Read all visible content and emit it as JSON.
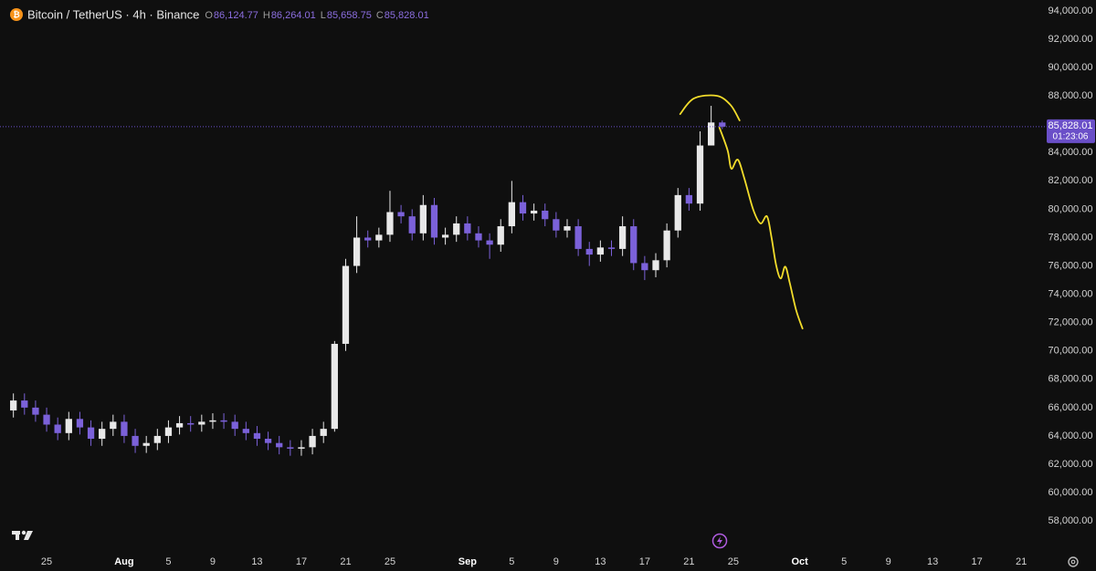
{
  "chart_data": {
    "type": "candlestick",
    "title": "Bitcoin / TetherUS · 4h · Binance",
    "header": [
      {
        "key": "O",
        "value": "86,124.77"
      },
      {
        "key": "H",
        "value": "86,264.01"
      },
      {
        "key": "L",
        "value": "85,658.75"
      },
      {
        "key": "C",
        "value": "85,828.01"
      }
    ],
    "last_price_label": "85,828.01",
    "countdown": "01:23:06",
    "up_color": "#e8e8e8",
    "down_color": "#7b61d9",
    "grid": false,
    "xlim": [
      20.79,
      114.8
    ],
    "ylim": [
      56140,
      94770
    ],
    "xticks": [
      {
        "value": 25,
        "label": "25"
      },
      {
        "value": 32,
        "label": "Aug"
      },
      {
        "value": 36,
        "label": "5"
      },
      {
        "value": 40,
        "label": "9"
      },
      {
        "value": 44,
        "label": "13"
      },
      {
        "value": 48,
        "label": "17"
      },
      {
        "value": 52,
        "label": "21"
      },
      {
        "value": 56,
        "label": "25"
      },
      {
        "value": 63,
        "label": "Sep"
      },
      {
        "value": 67,
        "label": "5"
      },
      {
        "value": 71,
        "label": "9"
      },
      {
        "value": 75,
        "label": "13"
      },
      {
        "value": 79,
        "label": "17"
      },
      {
        "value": 83,
        "label": "21"
      },
      {
        "value": 87,
        "label": "25"
      },
      {
        "value": 93,
        "label": "Oct"
      },
      {
        "value": 97,
        "label": "5"
      },
      {
        "value": 101,
        "label": "9"
      },
      {
        "value": 105,
        "label": "13"
      },
      {
        "value": 109,
        "label": "17"
      },
      {
        "value": 113,
        "label": "21"
      }
    ],
    "yticks": [
      {
        "value": 58000,
        "label": "58,000.00"
      },
      {
        "value": 60000,
        "label": "60,000.00"
      },
      {
        "value": 62000,
        "label": "62,000.00"
      },
      {
        "value": 64000,
        "label": "64,000.00"
      },
      {
        "value": 66000,
        "label": "66,000.00"
      },
      {
        "value": 68000,
        "label": "68,000.00"
      },
      {
        "value": 70000,
        "label": "70,000.00"
      },
      {
        "value": 72000,
        "label": "72,000.00"
      },
      {
        "value": 74000,
        "label": "74,000.00"
      },
      {
        "value": 76000,
        "label": "76,000.00"
      },
      {
        "value": 78000,
        "label": "78,000.00"
      },
      {
        "value": 80000,
        "label": "80,000.00"
      },
      {
        "value": 82000,
        "label": "82,000.00"
      },
      {
        "value": 84000,
        "label": "84,000.00"
      },
      {
        "value": 86000,
        "label": "86,000.00"
      },
      {
        "value": 88000,
        "label": "88,000.00"
      },
      {
        "value": 90000,
        "label": "90,000.00"
      },
      {
        "value": 92000,
        "label": "92,000.00"
      },
      {
        "value": 94000,
        "label": "94,000.00"
      }
    ],
    "x": [
      22,
      23,
      24,
      25,
      26,
      27,
      28,
      29,
      30,
      31,
      32,
      33,
      34,
      35,
      36,
      37,
      38,
      39,
      40,
      41,
      42,
      43,
      44,
      45,
      46,
      47,
      48,
      49,
      50,
      51,
      52,
      53,
      54,
      55,
      56,
      57,
      58,
      59,
      60,
      61,
      62,
      63,
      64,
      65,
      66,
      67,
      68,
      69,
      70,
      71,
      72,
      73,
      74,
      75,
      76,
      77,
      78,
      79,
      80,
      81,
      82,
      83,
      84,
      85,
      86
    ],
    "open": [
      65800,
      66500,
      66000,
      65500,
      64800,
      64200,
      65200,
      64600,
      63800,
      64500,
      65000,
      64000,
      63300,
      63500,
      64000,
      64600,
      64900,
      64800,
      65000,
      65100,
      65000,
      64500,
      64200,
      63800,
      63500,
      63200,
      63100,
      63200,
      64000,
      64500,
      70500,
      76000,
      78000,
      77800,
      78200,
      79800,
      79500,
      78300,
      80300,
      78000,
      78200,
      79000,
      78300,
      77800,
      77500,
      78800,
      80500,
      79700,
      79900,
      79300,
      78500,
      78800,
      77200,
      76800,
      77300,
      77200,
      78800,
      76200,
      75700,
      76400,
      78500,
      81000,
      80400,
      84500,
      86124.77
    ],
    "high": [
      67000,
      67000,
      66500,
      66000,
      65300,
      65700,
      65700,
      65100,
      65000,
      65500,
      65500,
      64500,
      64000,
      64500,
      65100,
      65400,
      65400,
      65500,
      65600,
      65600,
      65500,
      65000,
      64700,
      64300,
      64000,
      63700,
      63700,
      64500,
      65000,
      70700,
      76500,
      79500,
      78500,
      78700,
      81300,
      80300,
      80000,
      81000,
      80800,
      78700,
      79500,
      79500,
      78800,
      78300,
      79300,
      82000,
      81000,
      80400,
      80400,
      79800,
      79300,
      79300,
      77700,
      77800,
      77800,
      79500,
      79300,
      76700,
      76900,
      79000,
      81500,
      81500,
      85500,
      87300,
      86264.01
    ],
    "low": [
      65300,
      65500,
      65000,
      64300,
      63700,
      63700,
      64100,
      63300,
      63300,
      64000,
      63500,
      62800,
      62800,
      63000,
      63500,
      64100,
      64300,
      64300,
      64500,
      64500,
      64000,
      63700,
      63300,
      63000,
      62700,
      62600,
      62600,
      62700,
      63500,
      64300,
      70000,
      75500,
      77300,
      77300,
      77700,
      79000,
      77800,
      77800,
      77500,
      77500,
      77700,
      77800,
      77300,
      76500,
      77000,
      78300,
      79200,
      79200,
      78800,
      78000,
      78000,
      76700,
      76000,
      76300,
      76700,
      76700,
      75700,
      75000,
      75200,
      75900,
      78000,
      79900,
      79900,
      84500,
      85658.75
    ],
    "close": [
      66500,
      66000,
      65500,
      64800,
      64200,
      65200,
      64600,
      63800,
      64500,
      65000,
      64000,
      63300,
      63500,
      64000,
      64600,
      64900,
      64800,
      65000,
      65100,
      65000,
      64500,
      64200,
      63800,
      63500,
      63200,
      63100,
      63200,
      64000,
      64500,
      70500,
      76000,
      78000,
      77800,
      78200,
      79800,
      79500,
      78300,
      80300,
      78000,
      78200,
      79000,
      78300,
      77800,
      77500,
      78800,
      80500,
      79700,
      79900,
      79300,
      78500,
      78800,
      77200,
      76800,
      77300,
      77200,
      78800,
      76200,
      75700,
      76400,
      78500,
      81000,
      80400,
      84500,
      86124.77,
      85828.01
    ],
    "annotations": [
      {
        "color": "#f2dc2b",
        "x": [
          82.2,
          83.44,
          85.5,
          86.74,
          87.57
        ],
        "y": [
          86720,
          87820,
          88010,
          87370,
          86270
        ]
      },
      {
        "color": "#f2dc2b",
        "x": [
          85.75,
          86.49,
          86.82,
          87.4,
          87.98,
          88.8,
          89.46,
          90.04,
          90.45,
          90.86,
          91.28,
          91.69,
          92.1,
          92.68,
          93.25
        ],
        "y": [
          85760,
          84150,
          82860,
          83500,
          82220,
          79970,
          79000,
          79500,
          78010,
          76080,
          75110,
          75950,
          74790,
          72860,
          71580
        ]
      }
    ]
  }
}
